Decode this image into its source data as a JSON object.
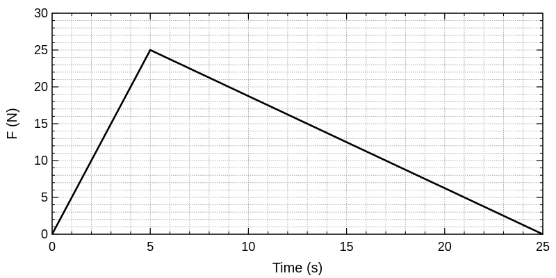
{
  "chart_data": {
    "type": "line",
    "xlabel": "Time (s)",
    "ylabel": "F (N)",
    "xlim": [
      0,
      25
    ],
    "ylim": [
      0,
      30
    ],
    "x_ticks": [
      "0",
      "5",
      "10",
      "15",
      "20",
      "25"
    ],
    "y_ticks": [
      "0",
      "5",
      "10",
      "15",
      "20",
      "25",
      "30"
    ],
    "x_minor_step": 1,
    "y_minor_step": 1,
    "grid": true,
    "series": [
      {
        "x": [
          0,
          5,
          25
        ],
        "y": [
          0,
          25,
          0
        ],
        "color": "#000000"
      }
    ]
  }
}
